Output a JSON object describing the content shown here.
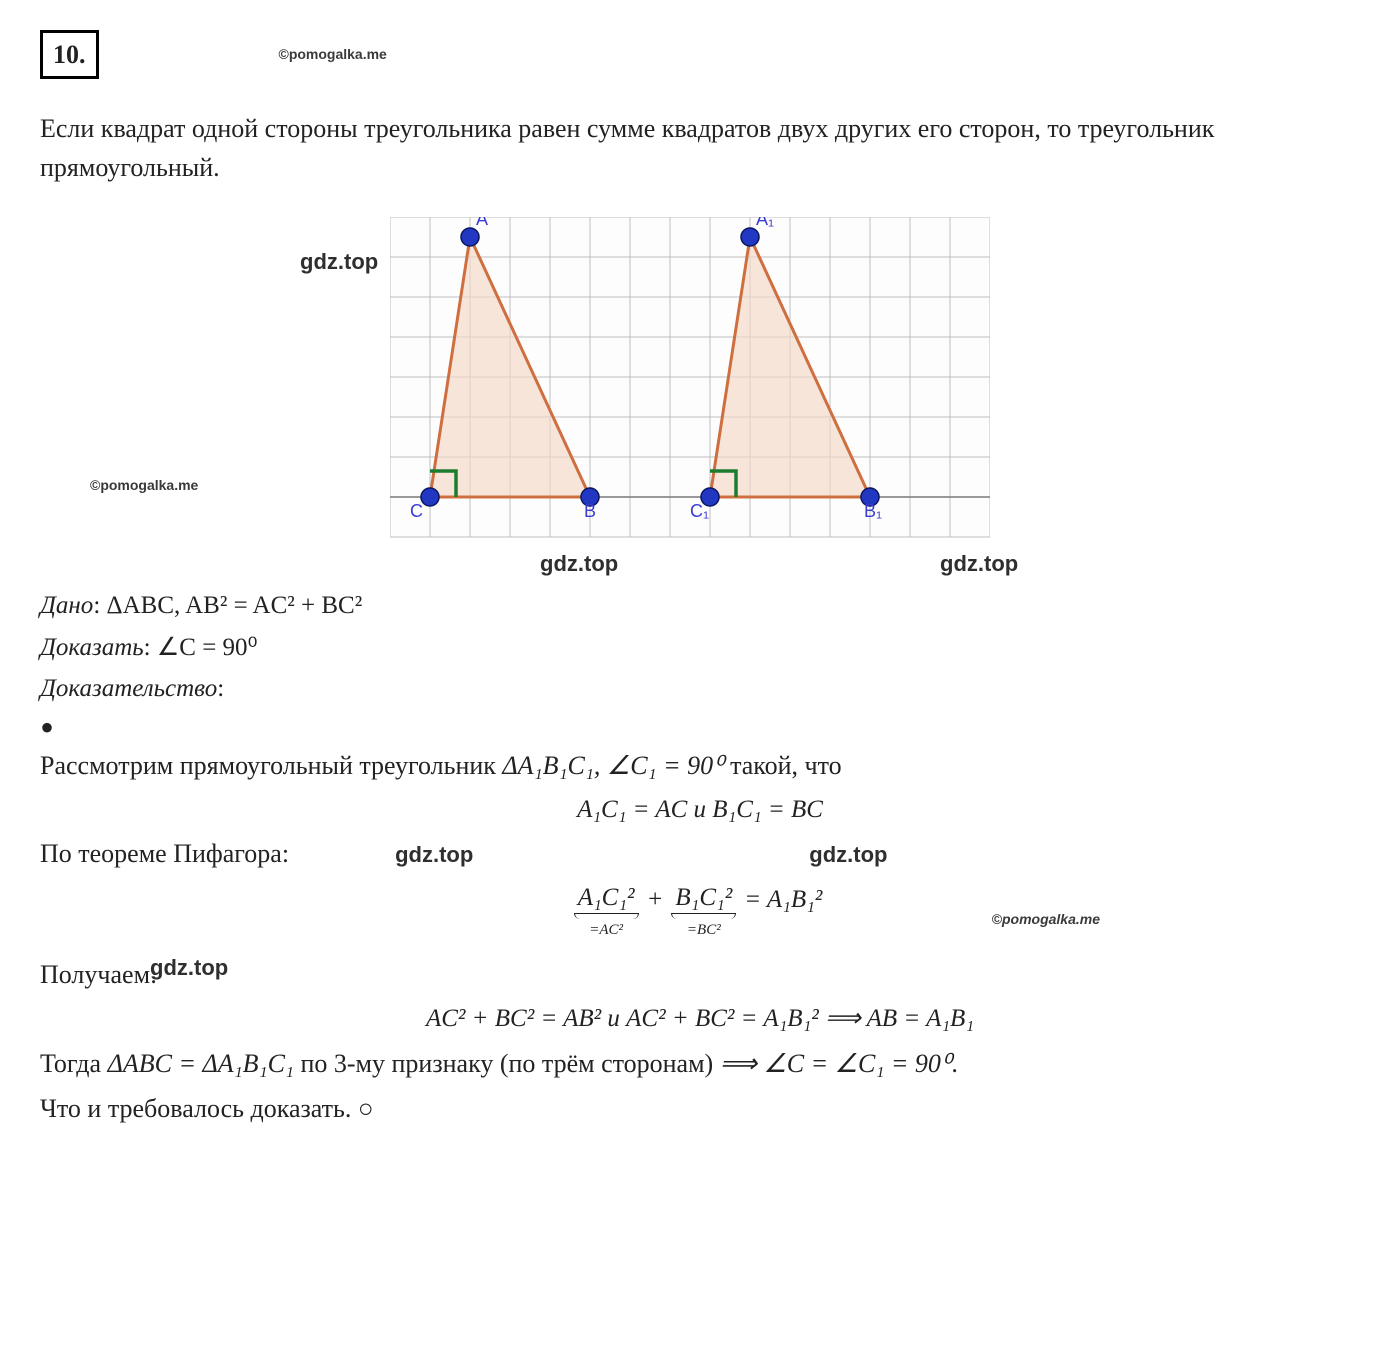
{
  "header": {
    "number": "10.",
    "copyright": "©pomogalka.me"
  },
  "paragraph": "Если квадрат одной стороны треугольника равен сумме квадратов двух других его сторон, то треугольник прямоугольный.",
  "watermarks": {
    "gdz_top": "gdz.top",
    "copyright_side": "©pomogalka.me"
  },
  "figure": {
    "grid": {
      "cols": 15,
      "rows": 8,
      "cell_size": 40,
      "line_color": "#bfbfbf",
      "axis_color": "#7a7a7a",
      "bg_color": "#fdfdfd"
    },
    "triangles": [
      {
        "vertices": {
          "A": [
            2,
            0.5
          ],
          "B": [
            5,
            7
          ],
          "C": [
            1,
            7
          ]
        },
        "labels": {
          "A": "A",
          "B": "B",
          "C": "C"
        },
        "fill": "#f5d9c7",
        "stroke": "#cf6f3f",
        "vertex_color": "#2238c2",
        "right_angle_stroke": "#1d7d2e"
      },
      {
        "vertices": {
          "A": [
            9,
            0.5
          ],
          "B": [
            12,
            7
          ],
          "C": [
            8,
            7
          ]
        },
        "labels": {
          "A": "A₁",
          "B": "B₁",
          "C": "C₁"
        },
        "fill": "#f5d9c7",
        "stroke": "#cf6f3f",
        "vertex_color": "#2238c2",
        "right_angle_stroke": "#1d7d2e"
      }
    ],
    "label_color": "#3a3cd6",
    "label_fontsize": 18
  },
  "proof": {
    "given_label": "Дано",
    "given_text": ": ΔABC, AB² = AC² + BC²",
    "prove_label": "Доказать",
    "prove_text": ": ∠C = 90⁰",
    "proof_label": "Доказательство",
    "colon": ":",
    "line1_a": "Рассмотрим прямоугольный треугольник ",
    "line1_b": "ΔA₁B₁C₁, ∠C₁ = 90⁰",
    "line1_c": " такой, что",
    "eq1": "A₁C₁ = AC и B₁C₁ = BC",
    "line2": "По теореме Пифагора:",
    "ub_left_top": "A₁C₁²",
    "ub_left_bot": "=AC²",
    "ub_plus": "+",
    "ub_right_top": "B₁C₁²",
    "ub_right_bot": "=BC²",
    "ub_eq": "= A₁B₁²",
    "line3": "Получаем:",
    "eq2": "AC² + BC² = AB² и AC² + BC² = A₁B₁²  ⟹ AB = A₁B₁",
    "line4_a": "Тогда ",
    "line4_b": "ΔABC = ΔA₁B₁C₁",
    "line4_c": " по 3-му признаку (по трём сторонам) ",
    "line4_d": "⟹ ∠C = ∠C₁ = 90⁰",
    "final": "Что и требовалось доказать. ○"
  }
}
